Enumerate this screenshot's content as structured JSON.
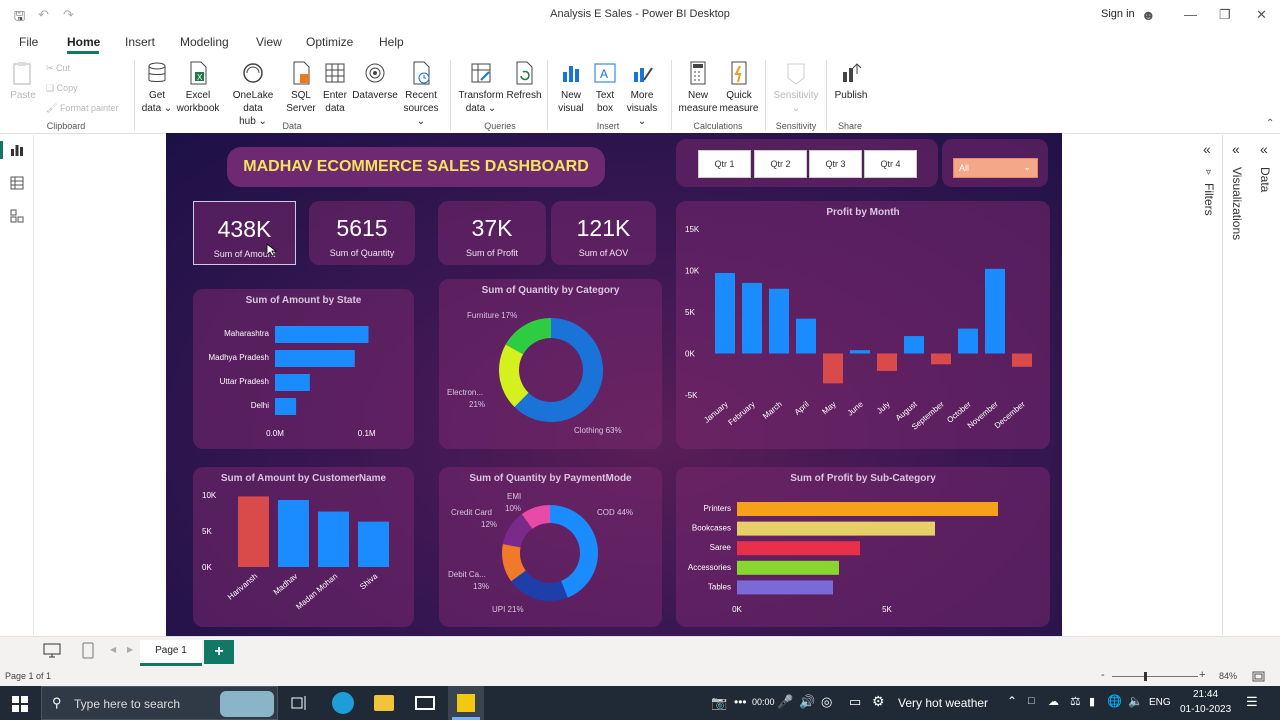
{
  "window": {
    "title": "Analysis E Sales - Power BI Desktop",
    "signin": "Sign in"
  },
  "menu": [
    "File",
    "Home",
    "Insert",
    "Modeling",
    "View",
    "Optimize",
    "Help"
  ],
  "ribbon": {
    "clipboard": {
      "paste": "Paste",
      "cut": "Cut",
      "copy": "Copy",
      "format_painter": "Format painter",
      "group": "Clipboard"
    },
    "data_buttons": [
      {
        "l1": "Get",
        "l2": "data ⌄"
      },
      {
        "l1": "Excel",
        "l2": "workbook"
      },
      {
        "l1": "OneLake data",
        "l2": "hub ⌄"
      },
      {
        "l1": "SQL",
        "l2": "Server"
      },
      {
        "l1": "Enter",
        "l2": "data"
      },
      {
        "l1": "Dataverse",
        "l2": ""
      },
      {
        "l1": "Recent",
        "l2": "sources ⌄"
      }
    ],
    "data_group": "Data",
    "queries_buttons": [
      {
        "l1": "Transform",
        "l2": "data ⌄"
      },
      {
        "l1": "Refresh",
        "l2": ""
      }
    ],
    "queries_group": "Queries",
    "insert_buttons": [
      {
        "l1": "New",
        "l2": "visual"
      },
      {
        "l1": "Text",
        "l2": "box"
      },
      {
        "l1": "More",
        "l2": "visuals ⌄"
      }
    ],
    "insert_group": "Insert",
    "calc_buttons": [
      {
        "l1": "New",
        "l2": "measure"
      },
      {
        "l1": "Quick",
        "l2": "measure"
      }
    ],
    "calc_group": "Calculations",
    "sensitivity": {
      "l1": "Sensitivity",
      "l2": "⌄",
      "group": "Sensitivity"
    },
    "share": {
      "l1": "Publish",
      "group": "Share"
    }
  },
  "dashboard": {
    "title": "MADHAV ECOMMERCE SALES DASHBOARD",
    "quarters": [
      "Qtr 1",
      "Qtr 2",
      "Qtr 3",
      "Qtr 4"
    ],
    "slicer_value": "All",
    "kpis": [
      {
        "value": "438K",
        "label": "Sum of Amount"
      },
      {
        "value": "5615",
        "label": "Sum of Quantity"
      },
      {
        "value": "37K",
        "label": "Sum of Profit"
      },
      {
        "value": "121K",
        "label": "Sum of AOV"
      }
    ],
    "state_chart_title": "Sum of Amount by State",
    "category_chart_title": "Sum of Quantity by Category",
    "month_chart_title": "Profit by Month",
    "customer_chart_title": "Sum of Amount by CustomerName",
    "payment_chart_title": "Sum of Quantity by PaymentMode",
    "subcat_chart_title": "Sum of Profit by Sub-Category"
  },
  "chart_data": [
    {
      "type": "bar",
      "title": "Sum of Amount by State",
      "categories": [
        "Maharashtra",
        "Madhya Pradesh",
        "Uttar Pradesh",
        "Delhi"
      ],
      "values": [
        0.102,
        0.087,
        0.038,
        0.023
      ],
      "xticks": [
        "0.0M",
        "0.1M"
      ],
      "xlim": [
        0,
        0.12
      ],
      "colors": {
        "bar": "#1a8cff"
      }
    },
    {
      "type": "pie",
      "title": "Sum of Quantity by Category",
      "categories": [
        "Clothing",
        "Electronics",
        "Furniture"
      ],
      "values": [
        63,
        21,
        17
      ],
      "labels": [
        "Clothing 63%",
        "Electron...",
        "21%",
        "Furniture 17%"
      ],
      "colors": [
        "#1a73d9",
        "#d4f01e",
        "#2ecc40"
      ]
    },
    {
      "type": "bar",
      "title": "Profit by Month",
      "categories": [
        "January",
        "February",
        "March",
        "April",
        "May",
        "June",
        "July",
        "August",
        "September",
        "October",
        "November",
        "December"
      ],
      "values": [
        9700,
        8500,
        7800,
        4200,
        -3600,
        400,
        -2100,
        2100,
        -1300,
        3000,
        10200,
        -1600
      ],
      "yticks": [
        "15K",
        "10K",
        "5K",
        "0K",
        "-5K"
      ],
      "ylim": [
        -5000,
        15000
      ],
      "colors": {
        "positive": "#1a8cff",
        "negative": "#d94a4a"
      }
    },
    {
      "type": "bar",
      "title": "Sum of Amount by CustomerName",
      "categories": [
        "Harivansh",
        "Madhav",
        "Madan Mohan",
        "Shiva"
      ],
      "values": [
        9800,
        9300,
        7700,
        6300
      ],
      "yticks": [
        "10K",
        "5K",
        "0K"
      ],
      "ylim": [
        0,
        10000
      ],
      "colors": [
        "#d94a4a",
        "#1a8cff",
        "#1a8cff",
        "#1a8cff"
      ]
    },
    {
      "type": "pie",
      "title": "Sum of Quantity by PaymentMode",
      "categories": [
        "COD",
        "UPI",
        "Debit Card",
        "Credit Card",
        "EMI"
      ],
      "values": [
        44,
        21,
        13,
        12,
        10
      ],
      "labels": [
        "COD 44%",
        "UPI 21%",
        "Debit Ca...",
        "13%",
        "Credit Card",
        "12%",
        "EMI",
        "10%"
      ],
      "colors": [
        "#1a8cff",
        "#1e3faa",
        "#f07a2a",
        "#7a2a8a",
        "#e84aa8"
      ]
    },
    {
      "type": "bar",
      "title": "Sum of Profit by Sub-Category",
      "categories": [
        "Printers",
        "Bookcases",
        "Saree",
        "Accessories",
        "Tables"
      ],
      "values": [
        8700,
        6600,
        4100,
        3400,
        3200
      ],
      "xticks": [
        "0K",
        "5K"
      ],
      "xlim": [
        0,
        10000
      ],
      "colors": [
        "#f5a21a",
        "#e8d068",
        "#e8304a",
        "#8ad630",
        "#7a6ad8"
      ]
    }
  ],
  "right_panes": {
    "filters": "Filters",
    "visualizations": "Visualizations",
    "data": "Data"
  },
  "pages": {
    "tab": "Page 1",
    "add": "+"
  },
  "status": {
    "page": "Page 1 of 1",
    "zoom": "84%",
    "zoom_minus": "-",
    "zoom_plus": "+"
  },
  "taskbar": {
    "search_placeholder": "Type here to search",
    "weather": "Very hot weather",
    "lang": "ENG",
    "time": "21:44",
    "date": "01-10-2023",
    "timer": "00:00"
  }
}
